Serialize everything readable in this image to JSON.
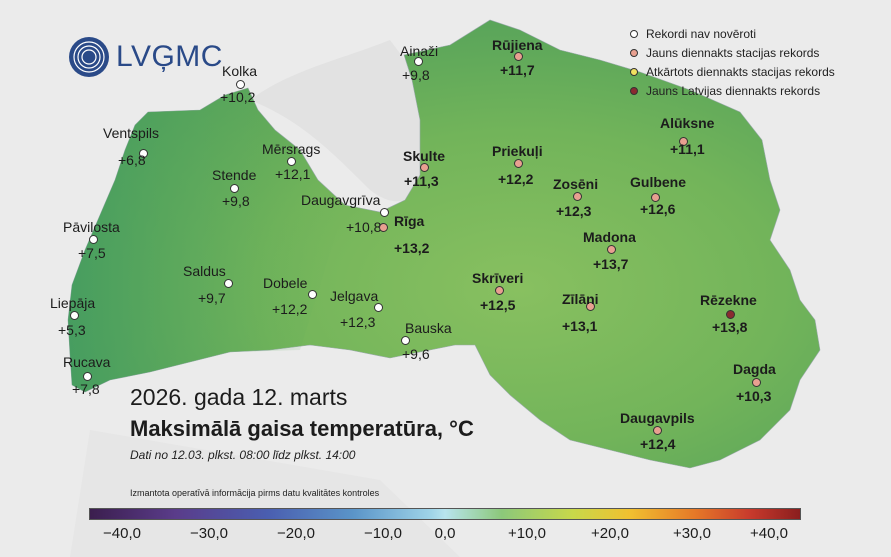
{
  "logo": {
    "text": "LVĢMC"
  },
  "legend": [
    {
      "label": "Rekordi nav novēroti",
      "color": "#ffffff"
    },
    {
      "label": "Jauns diennakts stacijas rekords",
      "color": "#e8a090"
    },
    {
      "label": "Atkārtots diennakts stacijas rekords",
      "color": "#f0e060"
    },
    {
      "label": "Jauns Latvijas diennakts rekords",
      "color": "#8a2a30"
    }
  ],
  "titles": {
    "date": "2026. gada 12. marts",
    "main": "Maksimālā gaisa temperatūra, °C",
    "subtitle": "Dati no 12.03. plkst. 08:00 līdz plkst. 14:00",
    "note": "Izmantota operatīvā informācija pirms datu kvalitātes kontroles"
  },
  "colorbar": {
    "ticks": [
      "−40,0",
      "−30,0",
      "−20,0",
      "−10,0",
      "0,0",
      "+10,0",
      "+20,0",
      "+30,0",
      "+40,0"
    ]
  },
  "stations": [
    {
      "name": "Ainaži",
      "value": "+9,8",
      "record": "none",
      "bold": false
    },
    {
      "name": "Rūjiena",
      "value": "+11,7",
      "record": "new",
      "bold": true
    },
    {
      "name": "Kolka",
      "value": "+10,2",
      "record": "none",
      "bold": false
    },
    {
      "name": "Ventspils",
      "value": "+6,8",
      "record": "none",
      "bold": false
    },
    {
      "name": "Mērsrags",
      "value": "+12,1",
      "record": "none",
      "bold": false
    },
    {
      "name": "Stende",
      "value": "+9,8",
      "record": "none",
      "bold": false
    },
    {
      "name": "Skulte",
      "value": "+11,3",
      "record": "new",
      "bold": true
    },
    {
      "name": "Priekuļi",
      "value": "+12,2",
      "record": "new",
      "bold": true
    },
    {
      "name": "Alūksne",
      "value": "+11,1",
      "record": "new",
      "bold": true
    },
    {
      "name": "Daugavgrīva",
      "value": "+10,8",
      "record": "none",
      "bold": false
    },
    {
      "name": "Rīga",
      "value": "+13,2",
      "record": "new",
      "bold": true
    },
    {
      "name": "Zosēni",
      "value": "+12,3",
      "record": "new",
      "bold": true
    },
    {
      "name": "Gulbene",
      "value": "+12,6",
      "record": "new",
      "bold": true
    },
    {
      "name": "Pāvilosta",
      "value": "+7,5",
      "record": "none",
      "bold": false
    },
    {
      "name": "Madona",
      "value": "+13,7",
      "record": "new",
      "bold": true
    },
    {
      "name": "Saldus",
      "value": "+9,7",
      "record": "none",
      "bold": false
    },
    {
      "name": "Dobele",
      "value": "+12,2",
      "record": "none",
      "bold": false
    },
    {
      "name": "Jelgava",
      "value": "+12,3",
      "record": "none",
      "bold": false
    },
    {
      "name": "Skrīveri",
      "value": "+12,5",
      "record": "new",
      "bold": true
    },
    {
      "name": "Zīlāni",
      "value": "+13,1",
      "record": "new",
      "bold": true
    },
    {
      "name": "Rēzekne",
      "value": "+13,8",
      "record": "lv",
      "bold": true
    },
    {
      "name": "Liepāja",
      "value": "+5,3",
      "record": "none",
      "bold": false
    },
    {
      "name": "Bauska",
      "value": "+9,6",
      "record": "none",
      "bold": false
    },
    {
      "name": "Rucava",
      "value": "+7,8",
      "record": "none",
      "bold": false
    },
    {
      "name": "Dagda",
      "value": "+10,3",
      "record": "new",
      "bold": true
    },
    {
      "name": "Daugavpils",
      "value": "+12,4",
      "record": "new",
      "bold": true
    }
  ]
}
